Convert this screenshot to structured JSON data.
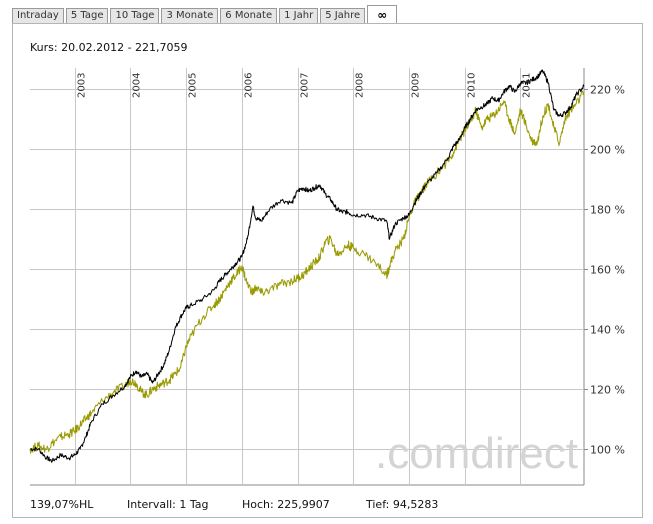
{
  "tabs": [
    {
      "label": "Intraday"
    },
    {
      "label": "5 Tage"
    },
    {
      "label": "10 Tage"
    },
    {
      "label": "3 Monate"
    },
    {
      "label": "6 Monate"
    },
    {
      "label": "1 Jahr"
    },
    {
      "label": "5 Jahre"
    },
    {
      "label": "∞"
    }
  ],
  "header": {
    "kurs": "Kurs: 20.02.2012 - 221,7059"
  },
  "footer": {
    "performance": "139,07%HL",
    "interval": "Intervall: 1 Tag",
    "high": "Hoch: 225,9907",
    "low": "Tief: 94,5283"
  },
  "watermark": ".comdirect",
  "colors": {
    "instrument": "#000000",
    "benchmark": "#999900",
    "grid": "#c8c8c8",
    "watermark": "#d4d4d4"
  },
  "chart_data": {
    "type": "line",
    "title": "",
    "xlabel": "",
    "ylabel": "",
    "x_ticks": [
      "2003",
      "2004",
      "2005",
      "2006",
      "2007",
      "2008",
      "2009",
      "2010",
      "2011"
    ],
    "x_range": [
      2002.2,
      2012.14
    ],
    "y_ticks": [
      "100 %",
      "120 %",
      "140 %",
      "160 %",
      "180 %",
      "200 %",
      "220 %"
    ],
    "ylim": [
      88,
      227
    ],
    "grid": true,
    "series": [
      {
        "color": "#000000",
        "x": [
          2002.2,
          2002.35,
          2002.5,
          2002.6,
          2002.75,
          2002.9,
          2003.0,
          2003.1,
          2003.2,
          2003.3,
          2003.5,
          2003.7,
          2003.9,
          2004.0,
          2004.1,
          2004.2,
          2004.3,
          2004.4,
          2004.5,
          2004.6,
          2004.7,
          2004.8,
          2004.9,
          2005.0,
          2005.1,
          2005.3,
          2005.5,
          2005.6,
          2005.7,
          2005.8,
          2005.9,
          2006.0,
          2006.1,
          2006.2,
          2006.25,
          2006.35,
          2006.5,
          2006.7,
          2006.9,
          2007.0,
          2007.1,
          2007.2,
          2007.3,
          2007.4,
          2007.5,
          2007.6,
          2007.7,
          2007.8,
          2007.9,
          2008.0,
          2008.2,
          2008.4,
          2008.6,
          2008.65,
          2008.75,
          2008.9,
          2009.0,
          2009.1,
          2009.2,
          2009.3,
          2009.5,
          2009.7,
          2009.8,
          2009.9,
          2010.0,
          2010.1,
          2010.2,
          2010.3,
          2010.4,
          2010.5,
          2010.6,
          2010.7,
          2010.8,
          2010.9,
          2011.0,
          2011.1,
          2011.2,
          2011.3,
          2011.4,
          2011.5,
          2011.6,
          2011.7,
          2011.8,
          2011.9,
          2012.0,
          2012.14
        ],
        "values": [
          100,
          100,
          97,
          96,
          98,
          97,
          98,
          100,
          104,
          109,
          115,
          118,
          121,
          124,
          126,
          124,
          125,
          122,
          125,
          128,
          133,
          140,
          144,
          147,
          148,
          150,
          153,
          156,
          158,
          160,
          162,
          164,
          170,
          181,
          177,
          176,
          180,
          183,
          182,
          186,
          187,
          186,
          187,
          188,
          185,
          183,
          180,
          179,
          179,
          178,
          178,
          177,
          176,
          170,
          175,
          177,
          178,
          182,
          185,
          188,
          192,
          197,
          201,
          203,
          207,
          210,
          213,
          214,
          215,
          217,
          216,
          219,
          221,
          219,
          222,
          222,
          223,
          224,
          226,
          222,
          213,
          211,
          212,
          214,
          218,
          221
        ]
      },
      {
        "color": "#999900",
        "x": [
          2002.2,
          2002.35,
          2002.5,
          2002.6,
          2002.75,
          2002.9,
          2003.0,
          2003.1,
          2003.2,
          2003.3,
          2003.5,
          2003.7,
          2003.9,
          2004.0,
          2004.1,
          2004.2,
          2004.3,
          2004.4,
          2004.5,
          2004.6,
          2004.7,
          2004.8,
          2004.9,
          2005.0,
          2005.1,
          2005.3,
          2005.5,
          2005.6,
          2005.7,
          2005.8,
          2005.9,
          2006.0,
          2006.1,
          2006.2,
          2006.25,
          2006.35,
          2006.5,
          2006.7,
          2006.9,
          2007.0,
          2007.1,
          2007.2,
          2007.3,
          2007.4,
          2007.5,
          2007.6,
          2007.7,
          2007.8,
          2007.9,
          2008.0,
          2008.2,
          2008.4,
          2008.6,
          2008.65,
          2008.75,
          2008.9,
          2009.0,
          2009.1,
          2009.2,
          2009.3,
          2009.5,
          2009.7,
          2009.8,
          2009.9,
          2010.0,
          2010.1,
          2010.2,
          2010.3,
          2010.4,
          2010.5,
          2010.6,
          2010.7,
          2010.8,
          2010.9,
          2011.0,
          2011.1,
          2011.2,
          2011.3,
          2011.4,
          2011.5,
          2011.6,
          2011.7,
          2011.8,
          2011.9,
          2012.0,
          2012.14
        ],
        "values": [
          100,
          101,
          100,
          102,
          104,
          105,
          106,
          108,
          110,
          112,
          116,
          119,
          121,
          123,
          122,
          119,
          118,
          120,
          121,
          122,
          123,
          125,
          127,
          134,
          138,
          144,
          148,
          150,
          153,
          156,
          158,
          161,
          155,
          152,
          154,
          152,
          153,
          155,
          156,
          157,
          158,
          160,
          162,
          164,
          169,
          170,
          165,
          166,
          168,
          167,
          165,
          162,
          158,
          161,
          166,
          170,
          177,
          182,
          185,
          188,
          192,
          196,
          199,
          203,
          206,
          209,
          213,
          207,
          210,
          211,
          213,
          216,
          210,
          205,
          213,
          208,
          203,
          202,
          211,
          215,
          207,
          202,
          210,
          213,
          215,
          219
        ]
      }
    ]
  }
}
